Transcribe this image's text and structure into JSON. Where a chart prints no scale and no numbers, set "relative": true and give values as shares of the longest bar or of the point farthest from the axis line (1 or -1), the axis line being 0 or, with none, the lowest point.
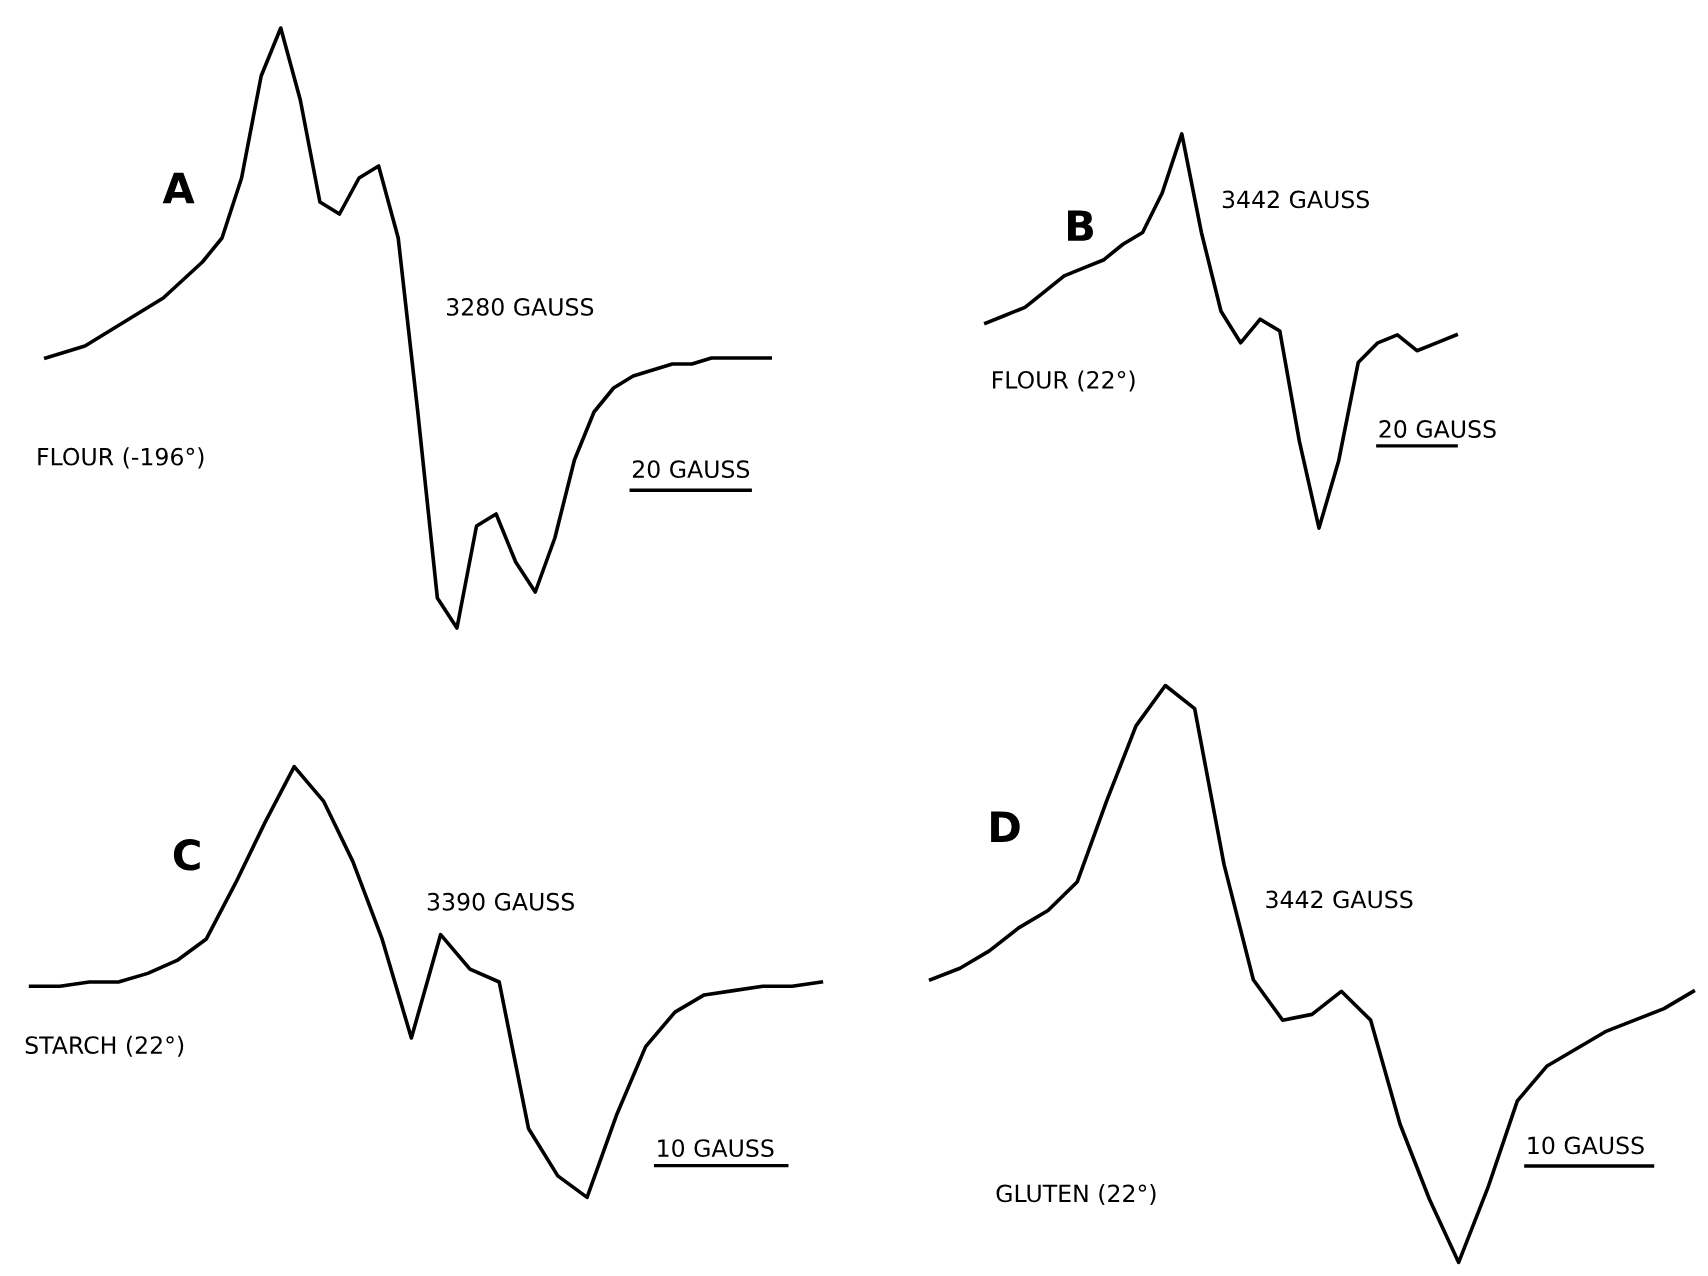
{
  "chart_data": [
    {
      "type": "line",
      "title": "A",
      "relative": true,
      "categories": [
        null,
        null,
        null,
        null,
        null,
        null,
        null,
        null,
        null,
        null,
        null,
        null,
        null,
        null,
        null,
        null,
        null,
        null,
        null,
        null,
        null,
        null,
        null,
        null,
        null,
        null,
        null,
        null,
        null,
        null,
        null,
        null,
        null,
        null,
        null,
        null,
        null,
        null
      ],
      "series": [
        {
          "color": "#000000",
          "values": [
            0.45,
            0.46,
            0.47,
            0.49,
            0.51,
            0.53,
            0.55,
            0.58,
            0.61,
            0.65,
            0.75,
            0.92,
            1.0,
            0.88,
            0.71,
            0.69,
            0.75,
            0.77,
            0.65,
            0.36,
            0.05,
            0.0,
            0.17,
            0.19,
            0.11,
            0.06,
            0.15,
            0.28,
            0.36,
            0.4,
            0.42,
            0.43,
            0.44,
            0.44,
            0.45,
            0.45,
            0.45,
            0.45
          ]
        }
      ],
      "annotations": [
        "FLOUR (-196°)",
        "3280 GAUSS",
        "20 GAUSS"
      ]
    },
    {
      "type": "line",
      "title": "B",
      "relative": true,
      "categories": [
        null,
        null,
        null,
        null,
        null,
        null,
        null,
        null,
        null,
        null,
        null,
        null,
        null,
        null,
        null,
        null,
        null,
        null,
        null,
        null,
        null,
        null,
        null,
        null,
        null
      ],
      "series": [
        {
          "color": "#000000",
          "values": [
            0.52,
            0.54,
            0.56,
            0.6,
            0.64,
            0.66,
            0.68,
            0.72,
            0.75,
            0.85,
            1.0,
            0.75,
            0.55,
            0.47,
            0.53,
            0.5,
            0.22,
            0.0,
            0.17,
            0.42,
            0.47,
            0.49,
            0.45,
            0.47,
            0.49
          ]
        }
      ],
      "annotations": [
        "FLOUR (22°)",
        "3442 GAUSS",
        "20 GAUSS"
      ]
    },
    {
      "type": "line",
      "title": "C",
      "relative": true,
      "categories": [
        null,
        null,
        null,
        null,
        null,
        null,
        null,
        null,
        null,
        null,
        null,
        null,
        null,
        null,
        null,
        null,
        null,
        null,
        null,
        null,
        null,
        null,
        null,
        null,
        null,
        null,
        null,
        null
      ],
      "series": [
        {
          "color": "#000000",
          "values": [
            0.49,
            0.49,
            0.5,
            0.5,
            0.52,
            0.55,
            0.6,
            0.73,
            0.87,
            1.0,
            0.92,
            0.78,
            0.6,
            0.37,
            0.61,
            0.53,
            0.5,
            0.16,
            0.05,
            0.0,
            0.19,
            0.35,
            0.43,
            0.47,
            0.48,
            0.49,
            0.49,
            0.5
          ]
        }
      ],
      "annotations": [
        "STARCH (22°)",
        "3390 GAUSS",
        "10 GAUSS"
      ]
    },
    {
      "type": "line",
      "title": "D",
      "relative": true,
      "categories": [
        null,
        null,
        null,
        null,
        null,
        null,
        null,
        null,
        null,
        null,
        null,
        null,
        null,
        null,
        null,
        null,
        null,
        null,
        null,
        null,
        null,
        null,
        null,
        null,
        null,
        null,
        null
      ],
      "series": [
        {
          "color": "#000000",
          "values": [
            0.49,
            0.51,
            0.54,
            0.58,
            0.61,
            0.66,
            0.8,
            0.93,
            1.0,
            0.96,
            0.69,
            0.49,
            0.42,
            0.43,
            0.47,
            0.42,
            0.24,
            0.11,
            0.0,
            0.13,
            0.28,
            0.34,
            0.37,
            0.4,
            0.42,
            0.44,
            0.47
          ]
        }
      ],
      "annotations": [
        "GLUTEN (22°)",
        "3442 GAUSS",
        "10 GAUSS"
      ]
    }
  ]
}
